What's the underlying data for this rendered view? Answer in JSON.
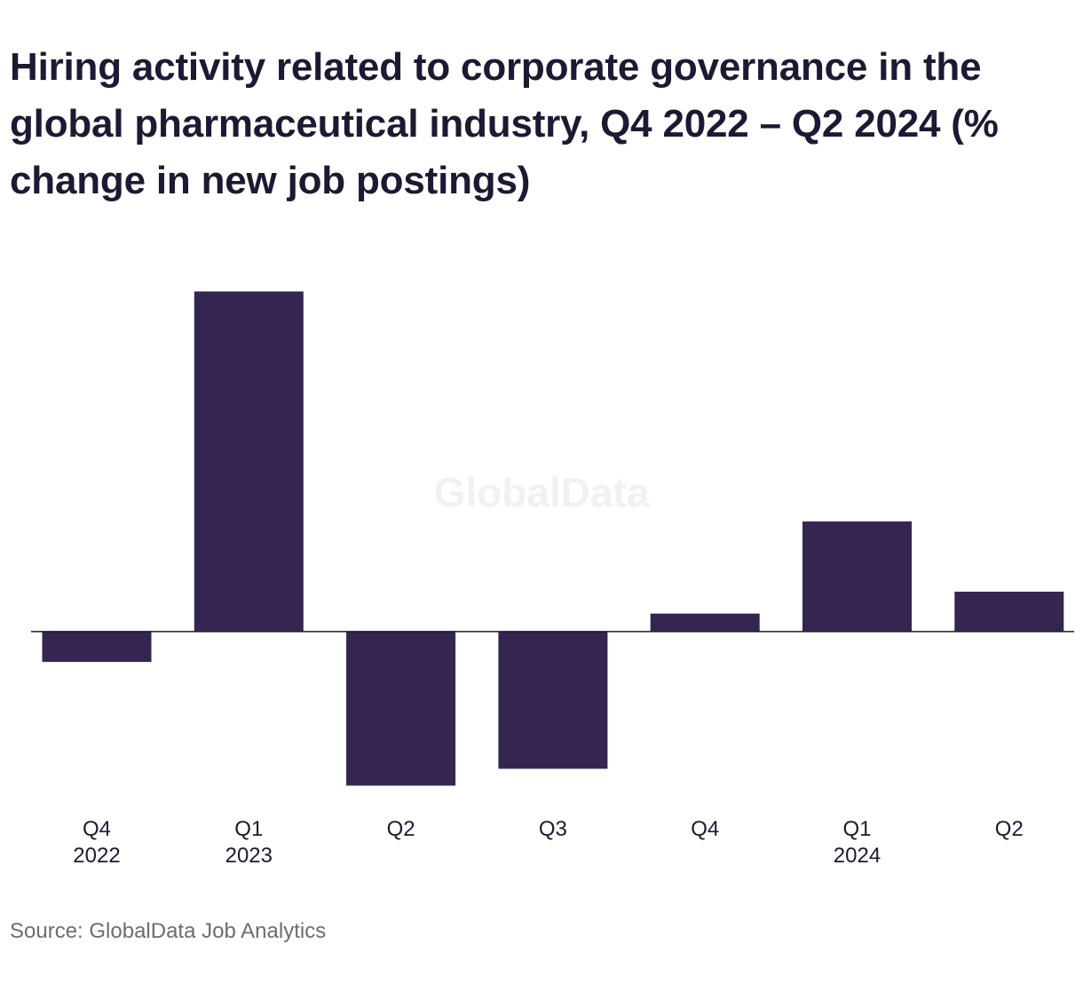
{
  "chart_data": {
    "type": "bar",
    "title": "Hiring activity related to corporate governance in the global pharmaceutical industry, Q4 2022 – Q2 2024 (% change in new job postings)",
    "categories": [
      [
        "Q4",
        "2022"
      ],
      [
        "Q1",
        "2023"
      ],
      [
        "Q2",
        ""
      ],
      [
        "Q3",
        ""
      ],
      [
        "Q4",
        ""
      ],
      [
        "Q1",
        "2024"
      ],
      [
        "Q2",
        ""
      ]
    ],
    "values": [
      -5.4,
      60.5,
      -27.4,
      -24.4,
      3.2,
      19.6,
      7.1
    ],
    "ylim": [
      -30,
      65
    ],
    "grid": false,
    "bar_color": "#352551",
    "watermark": "GlobalData",
    "source": "Source: GlobalData Job Analytics"
  }
}
